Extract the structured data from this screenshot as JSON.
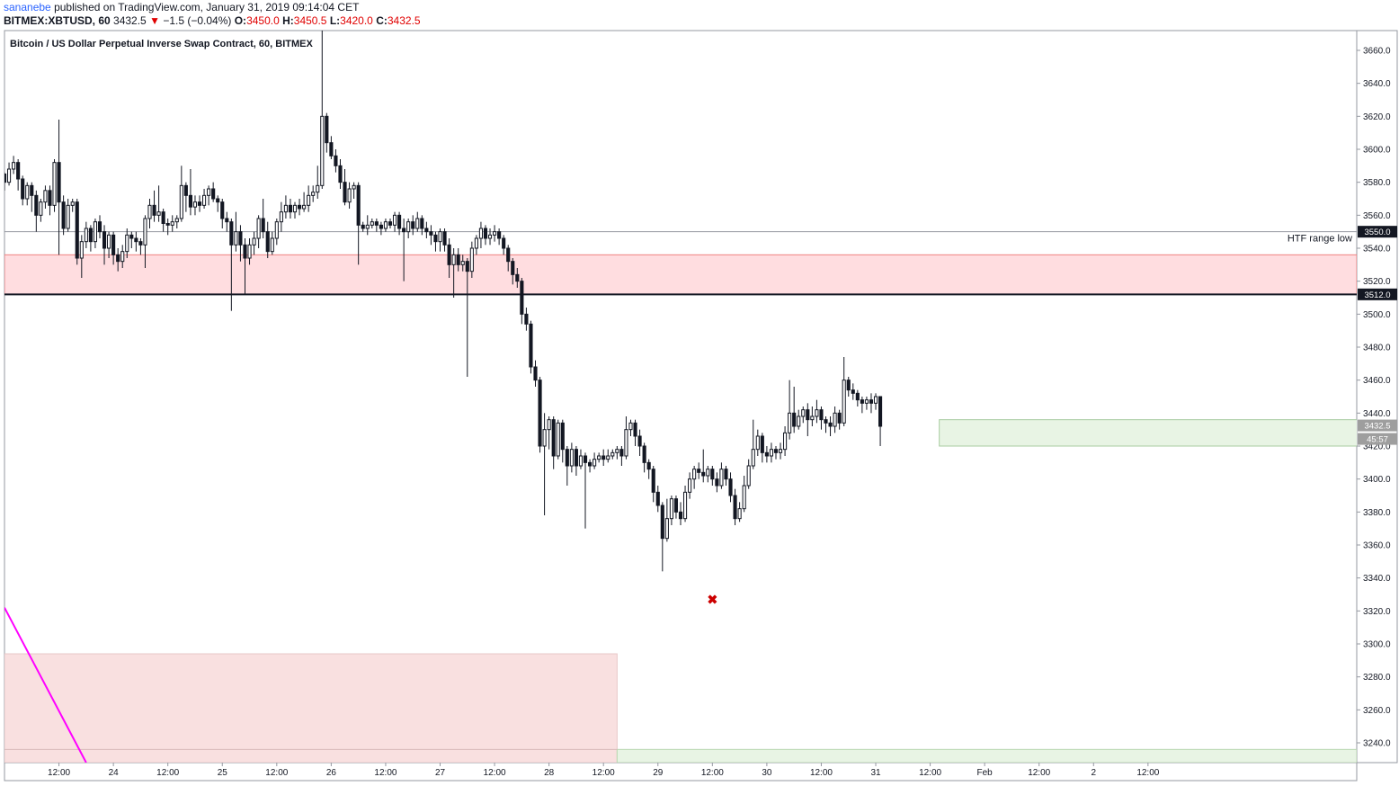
{
  "header": {
    "author": "sananebe",
    "published": "published on TradingView.com, January 31, 2019 09:14:04 CET",
    "symbol": "BITMEX:XBTUSD, 60",
    "last": "3432.5",
    "change_arrow": "▼",
    "change": "−1.5 (−0.04%)",
    "o_label": "O:",
    "o_val": "3450.0",
    "h_label": "H:",
    "h_val": "3450.5",
    "l_label": "L:",
    "l_val": "3420.0",
    "c_label": "C:",
    "c_val": "3432.5"
  },
  "colors": {
    "resistance_zone": "#ffdde0",
    "support_zone": "#e8f4e4",
    "bottom_red_zone": "#f9e0e0",
    "trendline": "#ff00ff",
    "marker": "#cc0000"
  },
  "chart_data": {
    "type": "candlestick",
    "title": "Bitcoin / US Dollar Perpetual Inverse Swap Contract, 60, BITMEX",
    "ylim": [
      3228,
      3672
    ],
    "y_ticks": [
      "3240.0",
      "3260.0",
      "3280.0",
      "3300.0",
      "3320.0",
      "3340.0",
      "3360.0",
      "3380.0",
      "3400.0",
      "3420.0",
      "3440.0",
      "3460.0",
      "3480.0",
      "3500.0",
      "3520.0",
      "3540.0",
      "3560.0",
      "3580.0",
      "3600.0",
      "3620.0",
      "3640.0",
      "3660.0"
    ],
    "y_tick_values": [
      3240,
      3260,
      3280,
      3300,
      3320,
      3340,
      3360,
      3380,
      3400,
      3420,
      3440,
      3460,
      3480,
      3500,
      3520,
      3540,
      3560,
      3580,
      3600,
      3620,
      3640,
      3660
    ],
    "x_ticks": [
      "12:00",
      "24",
      "12:00",
      "25",
      "12:00",
      "26",
      "12:00",
      "27",
      "12:00",
      "28",
      "12:00",
      "29",
      "12:00",
      "30",
      "12:00",
      "31",
      "12:00",
      "Feb",
      "12:00",
      "2",
      "12:00"
    ],
    "x_start_hour": -48,
    "hours_per_tick": 12,
    "x_end_hour": 250,
    "price_labels": {
      "htf": "3550.0",
      "level": "3512.0",
      "last": "3432.5",
      "countdown": "45:57"
    },
    "annotations": {
      "htf_text": "HTF range low",
      "htf_value": 3550,
      "black_level": 3512,
      "resistance_zone": [
        3536,
        3512
      ],
      "support_zone": [
        3436,
        3420
      ],
      "support_zone_hours": [
        158,
        264
      ],
      "bottom_red_zone": [
        3294,
        3228
      ],
      "bottom_red_zone_hours": [
        -48,
        87
      ],
      "bottom_green_zone": [
        3236,
        3228
      ],
      "bottom_green_zone_hours": [
        87,
        250
      ],
      "trendline": [
        [
          -48,
          3322
        ],
        [
          -30,
          3228
        ]
      ],
      "marker": [
        108,
        3327
      ]
    },
    "candles": [
      [
        -48,
        3585,
        3580,
        3586,
        3575
      ],
      [
        -47,
        3580,
        3588,
        3592,
        3578
      ],
      [
        -46,
        3588,
        3592,
        3596,
        3585
      ],
      [
        -45,
        3592,
        3582,
        3594,
        3575
      ],
      [
        -44,
        3582,
        3570,
        3584,
        3566
      ],
      [
        -43,
        3570,
        3578,
        3580,
        3566
      ],
      [
        -42,
        3578,
        3572,
        3580,
        3562
      ],
      [
        -41,
        3572,
        3560,
        3575,
        3550
      ],
      [
        -40,
        3560,
        3568,
        3570,
        3556
      ],
      [
        -39,
        3568,
        3575,
        3578,
        3564
      ],
      [
        -38,
        3575,
        3566,
        3578,
        3560
      ],
      [
        -37,
        3566,
        3592,
        3594,
        3562
      ],
      [
        -36,
        3592,
        3568,
        3618,
        3536
      ],
      [
        -35,
        3568,
        3552,
        3572,
        3548
      ],
      [
        -34,
        3552,
        3566,
        3570,
        3550
      ],
      [
        -33,
        3566,
        3568,
        3570,
        3562
      ],
      [
        -32,
        3568,
        3534,
        3570,
        3530
      ],
      [
        -31,
        3534,
        3544,
        3548,
        3522
      ],
      [
        -30,
        3544,
        3552,
        3556,
        3540
      ],
      [
        -29,
        3552,
        3544,
        3554,
        3538
      ],
      [
        -28,
        3544,
        3556,
        3558,
        3540
      ],
      [
        -27,
        3556,
        3550,
        3560,
        3546
      ],
      [
        -26,
        3550,
        3540,
        3554,
        3530
      ],
      [
        -25,
        3540,
        3548,
        3550,
        3534
      ],
      [
        -24,
        3548,
        3536,
        3550,
        3530
      ],
      [
        -23,
        3536,
        3532,
        3540,
        3526
      ],
      [
        -22,
        3532,
        3538,
        3542,
        3528
      ],
      [
        -21,
        3538,
        3548,
        3552,
        3534
      ],
      [
        -20,
        3548,
        3546,
        3550,
        3540
      ],
      [
        -19,
        3546,
        3544,
        3550,
        3538
      ],
      [
        -18,
        3544,
        3542,
        3546,
        3536
      ],
      [
        -17,
        3542,
        3558,
        3560,
        3528
      ],
      [
        -16,
        3558,
        3566,
        3570,
        3552
      ],
      [
        -15,
        3566,
        3560,
        3575,
        3556
      ],
      [
        -14,
        3560,
        3562,
        3578,
        3556
      ],
      [
        -13,
        3562,
        3555,
        3564,
        3550
      ],
      [
        -12,
        3555,
        3554,
        3558,
        3548
      ],
      [
        -11,
        3554,
        3556,
        3560,
        3550
      ],
      [
        -10,
        3556,
        3558,
        3560,
        3552
      ],
      [
        -9,
        3558,
        3578,
        3590,
        3556
      ],
      [
        -8,
        3578,
        3572,
        3580,
        3562
      ],
      [
        -7,
        3572,
        3565,
        3588,
        3560
      ],
      [
        -6,
        3565,
        3568,
        3572,
        3560
      ],
      [
        -5,
        3568,
        3566,
        3572,
        3562
      ],
      [
        -4,
        3566,
        3572,
        3576,
        3564
      ],
      [
        -3,
        3572,
        3576,
        3578,
        3566
      ],
      [
        -2,
        3576,
        3570,
        3580,
        3568
      ],
      [
        -1,
        3570,
        3568,
        3572,
        3562
      ],
      [
        0,
        3568,
        3558,
        3570,
        3552
      ],
      [
        1,
        3558,
        3556,
        3562,
        3550
      ],
      [
        2,
        3556,
        3542,
        3558,
        3502
      ],
      [
        3,
        3542,
        3550,
        3562,
        3538
      ],
      [
        4,
        3550,
        3542,
        3554,
        3532
      ],
      [
        5,
        3542,
        3534,
        3546,
        3512
      ],
      [
        6,
        3534,
        3542,
        3546,
        3530
      ],
      [
        7,
        3542,
        3546,
        3550,
        3536
      ],
      [
        8,
        3546,
        3558,
        3560,
        3540
      ],
      [
        9,
        3558,
        3550,
        3570,
        3546
      ],
      [
        10,
        3550,
        3538,
        3556,
        3534
      ],
      [
        11,
        3538,
        3546,
        3550,
        3536
      ],
      [
        12,
        3546,
        3556,
        3558,
        3542
      ],
      [
        13,
        3556,
        3562,
        3568,
        3550
      ],
      [
        14,
        3562,
        3566,
        3572,
        3558
      ],
      [
        15,
        3566,
        3562,
        3570,
        3558
      ],
      [
        16,
        3562,
        3566,
        3568,
        3558
      ],
      [
        17,
        3566,
        3564,
        3570,
        3560
      ],
      [
        18,
        3564,
        3566,
        3574,
        3562
      ],
      [
        19,
        3566,
        3572,
        3578,
        3562
      ],
      [
        20,
        3572,
        3574,
        3578,
        3568
      ],
      [
        21,
        3574,
        3578,
        3590,
        3570
      ],
      [
        22,
        3578,
        3620,
        3672,
        3576
      ],
      [
        23,
        3620,
        3604,
        3622,
        3598
      ],
      [
        24,
        3604,
        3596,
        3608,
        3594
      ],
      [
        25,
        3596,
        3590,
        3600,
        3586
      ],
      [
        26,
        3590,
        3580,
        3594,
        3576
      ],
      [
        27,
        3580,
        3568,
        3588,
        3566
      ],
      [
        28,
        3568,
        3576,
        3580,
        3564
      ],
      [
        29,
        3576,
        3578,
        3580,
        3570
      ],
      [
        30,
        3578,
        3554,
        3580,
        3530
      ],
      [
        31,
        3554,
        3552,
        3556,
        3550
      ],
      [
        32,
        3552,
        3554,
        3560,
        3548
      ],
      [
        33,
        3554,
        3556,
        3558,
        3552
      ],
      [
        34,
        3556,
        3554,
        3558,
        3550
      ],
      [
        35,
        3554,
        3552,
        3556,
        3548
      ],
      [
        36,
        3552,
        3556,
        3558,
        3550
      ],
      [
        37,
        3556,
        3554,
        3558,
        3552
      ],
      [
        38,
        3554,
        3560,
        3562,
        3550
      ],
      [
        39,
        3560,
        3552,
        3562,
        3548
      ],
      [
        40,
        3552,
        3550,
        3558,
        3520
      ],
      [
        41,
        3550,
        3556,
        3558,
        3546
      ],
      [
        42,
        3556,
        3552,
        3560,
        3548
      ],
      [
        43,
        3552,
        3558,
        3562,
        3550
      ],
      [
        44,
        3558,
        3552,
        3560,
        3548
      ],
      [
        45,
        3552,
        3550,
        3556,
        3546
      ],
      [
        46,
        3550,
        3548,
        3554,
        3542
      ],
      [
        47,
        3548,
        3544,
        3550,
        3538
      ],
      [
        48,
        3544,
        3550,
        3552,
        3538
      ],
      [
        49,
        3550,
        3542,
        3552,
        3538
      ],
      [
        50,
        3542,
        3530,
        3546,
        3522
      ],
      [
        51,
        3530,
        3536,
        3540,
        3510
      ],
      [
        52,
        3536,
        3530,
        3540,
        3526
      ],
      [
        53,
        3530,
        3532,
        3536,
        3526
      ],
      [
        54,
        3532,
        3526,
        3534,
        3462
      ],
      [
        55,
        3526,
        3540,
        3544,
        3522
      ],
      [
        56,
        3540,
        3546,
        3548,
        3536
      ],
      [
        57,
        3546,
        3552,
        3556,
        3540
      ],
      [
        58,
        3552,
        3546,
        3554,
        3542
      ],
      [
        59,
        3546,
        3548,
        3552,
        3542
      ],
      [
        60,
        3548,
        3550,
        3554,
        3544
      ],
      [
        61,
        3550,
        3546,
        3552,
        3542
      ],
      [
        62,
        3546,
        3540,
        3548,
        3536
      ],
      [
        63,
        3540,
        3532,
        3542,
        3526
      ],
      [
        64,
        3532,
        3524,
        3534,
        3518
      ],
      [
        65,
        3524,
        3520,
        3528,
        3516
      ],
      [
        66,
        3520,
        3500,
        3522,
        3494
      ],
      [
        67,
        3500,
        3494,
        3504,
        3490
      ],
      [
        68,
        3494,
        3468,
        3496,
        3464
      ],
      [
        69,
        3468,
        3460,
        3472,
        3456
      ],
      [
        70,
        3460,
        3420,
        3462,
        3416
      ],
      [
        71,
        3420,
        3430,
        3440,
        3378
      ],
      [
        72,
        3430,
        3436,
        3438,
        3418
      ],
      [
        73,
        3436,
        3414,
        3438,
        3406
      ],
      [
        74,
        3414,
        3434,
        3436,
        3412
      ],
      [
        75,
        3434,
        3418,
        3436,
        3410
      ],
      [
        76,
        3418,
        3408,
        3420,
        3396
      ],
      [
        77,
        3408,
        3418,
        3422,
        3404
      ],
      [
        78,
        3418,
        3408,
        3420,
        3402
      ],
      [
        79,
        3408,
        3414,
        3418,
        3406
      ],
      [
        80,
        3414,
        3410,
        3416,
        3370
      ],
      [
        81,
        3410,
        3408,
        3412,
        3404
      ],
      [
        82,
        3408,
        3412,
        3416,
        3406
      ],
      [
        83,
        3412,
        3414,
        3416,
        3410
      ],
      [
        84,
        3414,
        3412,
        3418,
        3408
      ],
      [
        85,
        3412,
        3414,
        3418,
        3410
      ],
      [
        86,
        3414,
        3416,
        3418,
        3412
      ],
      [
        87,
        3416,
        3418,
        3420,
        3412
      ],
      [
        88,
        3418,
        3414,
        3420,
        3408
      ],
      [
        89,
        3414,
        3430,
        3438,
        3412
      ],
      [
        90,
        3430,
        3434,
        3436,
        3426
      ],
      [
        91,
        3434,
        3426,
        3436,
        3420
      ],
      [
        92,
        3426,
        3420,
        3430,
        3414
      ],
      [
        93,
        3420,
        3410,
        3422,
        3404
      ],
      [
        94,
        3410,
        3406,
        3412,
        3400
      ],
      [
        95,
        3406,
        3392,
        3408,
        3386
      ],
      [
        96,
        3392,
        3384,
        3396,
        3380
      ],
      [
        97,
        3384,
        3364,
        3386,
        3344
      ],
      [
        98,
        3364,
        3376,
        3388,
        3362
      ],
      [
        99,
        3376,
        3388,
        3390,
        3372
      ],
      [
        100,
        3388,
        3380,
        3390,
        3376
      ],
      [
        101,
        3380,
        3376,
        3386,
        3372
      ],
      [
        102,
        3376,
        3392,
        3396,
        3374
      ],
      [
        103,
        3392,
        3400,
        3404,
        3388
      ],
      [
        104,
        3400,
        3406,
        3408,
        3394
      ],
      [
        105,
        3406,
        3404,
        3410,
        3400
      ],
      [
        106,
        3404,
        3402,
        3418,
        3398
      ],
      [
        107,
        3402,
        3406,
        3408,
        3398
      ],
      [
        108,
        3406,
        3400,
        3408,
        3396
      ],
      [
        109,
        3400,
        3396,
        3404,
        3392
      ],
      [
        110,
        3396,
        3406,
        3410,
        3394
      ],
      [
        111,
        3406,
        3400,
        3408,
        3396
      ],
      [
        112,
        3400,
        3390,
        3404,
        3386
      ],
      [
        113,
        3390,
        3376,
        3394,
        3372
      ],
      [
        114,
        3376,
        3382,
        3386,
        3374
      ],
      [
        115,
        3382,
        3396,
        3402,
        3380
      ],
      [
        116,
        3396,
        3408,
        3412,
        3394
      ],
      [
        117,
        3408,
        3418,
        3436,
        3406
      ],
      [
        118,
        3418,
        3426,
        3430,
        3414
      ],
      [
        119,
        3426,
        3416,
        3428,
        3410
      ],
      [
        120,
        3416,
        3414,
        3420,
        3410
      ],
      [
        121,
        3414,
        3418,
        3422,
        3410
      ],
      [
        122,
        3418,
        3416,
        3420,
        3412
      ],
      [
        123,
        3416,
        3418,
        3422,
        3412
      ],
      [
        124,
        3418,
        3428,
        3432,
        3414
      ],
      [
        125,
        3428,
        3440,
        3460,
        3424
      ],
      [
        126,
        3440,
        3432,
        3456,
        3428
      ],
      [
        127,
        3432,
        3438,
        3442,
        3430
      ],
      [
        128,
        3438,
        3442,
        3444,
        3434
      ],
      [
        129,
        3442,
        3436,
        3446,
        3426
      ],
      [
        130,
        3436,
        3438,
        3444,
        3432
      ],
      [
        131,
        3438,
        3442,
        3448,
        3434
      ],
      [
        132,
        3442,
        3436,
        3444,
        3430
      ],
      [
        133,
        3436,
        3434,
        3438,
        3428
      ],
      [
        134,
        3434,
        3432,
        3438,
        3426
      ],
      [
        135,
        3432,
        3440,
        3444,
        3428
      ],
      [
        136,
        3440,
        3434,
        3442,
        3430
      ],
      [
        137,
        3434,
        3460,
        3474,
        3432
      ],
      [
        138,
        3460,
        3454,
        3462,
        3450
      ],
      [
        139,
        3454,
        3452,
        3458,
        3448
      ],
      [
        140,
        3452,
        3448,
        3454,
        3444
      ],
      [
        141,
        3448,
        3446,
        3450,
        3440
      ],
      [
        142,
        3446,
        3448,
        3450,
        3442
      ],
      [
        143,
        3448,
        3446,
        3452,
        3440
      ],
      [
        144,
        3446,
        3450,
        3452,
        3442
      ],
      [
        145,
        3450,
        3432,
        3450,
        3420
      ]
    ]
  }
}
